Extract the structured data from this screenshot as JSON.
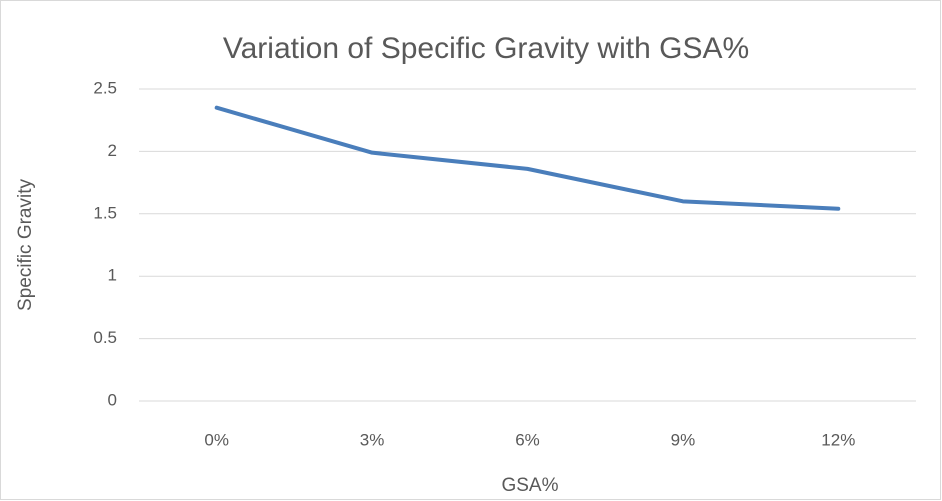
{
  "chart_data": {
    "type": "line",
    "title": "Variation of Specific Gravity with GSA%",
    "x_label": "GSA%",
    "y_label": "Specific Gravity",
    "categories": [
      "0%",
      "3%",
      "6%",
      "9%",
      "12%"
    ],
    "series": [
      {
        "name": "Specific Gravity",
        "color": "#4a7ebb",
        "values": [
          2.35,
          1.99,
          1.86,
          1.6,
          1.54
        ]
      }
    ],
    "ylim": [
      0,
      2.5
    ],
    "yticks": [
      0,
      0.5,
      1,
      1.5,
      2,
      2.5
    ],
    "grid": true
  }
}
